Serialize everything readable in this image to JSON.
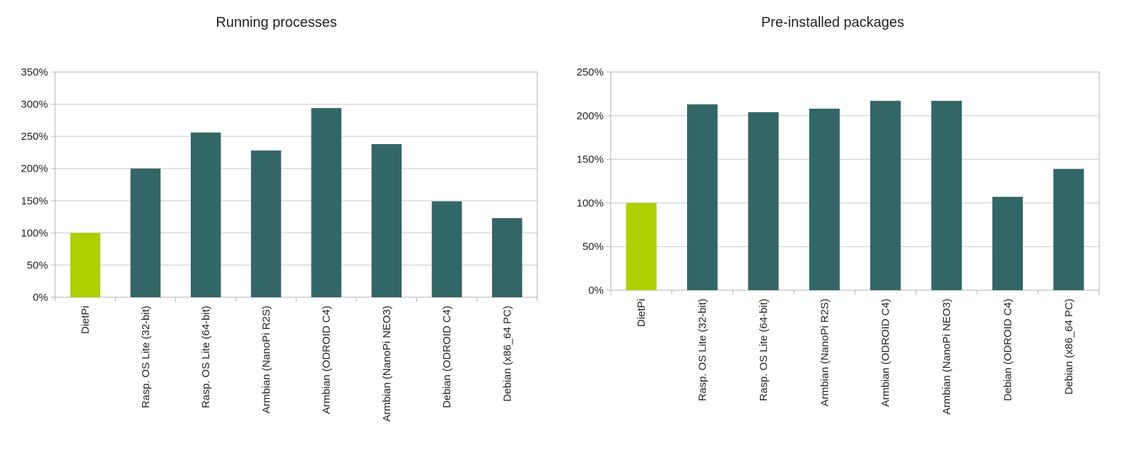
{
  "colors": {
    "highlight": "#b0cf00",
    "bar": "#336666",
    "grid": "#c8c8c8",
    "axis": "#b3b3b3",
    "text": "#222222"
  },
  "chart_data": [
    {
      "type": "bar",
      "title": "Running processes",
      "categories": [
        "DietPi",
        "Rasp. OS Lite (32-bit)",
        "Rasp. OS Lite (64-bit)",
        "Armbian (NanoPi R2S)",
        "Armbian (ODROID C4)",
        "Armbian (NanoPi NEO3)",
        "Debian (ODROID C4)",
        "Debian (x86_64 PC)"
      ],
      "values": [
        100,
        200,
        256,
        228,
        294,
        238,
        149,
        123
      ],
      "highlighted_category": "DietPi",
      "ylim": [
        0,
        350
      ],
      "y_ticks": [
        0,
        50,
        100,
        150,
        200,
        250,
        300,
        350
      ],
      "y_tick_labels": [
        "0%",
        "50%",
        "100%",
        "150%",
        "200%",
        "250%",
        "300%",
        "350%"
      ],
      "xlabel": "",
      "ylabel": "",
      "grid": true,
      "legend": "none"
    },
    {
      "type": "bar",
      "title": "Pre-installed packages",
      "categories": [
        "DietPi",
        "Rasp. OS Lite (32-bit)",
        "Rasp. OS Lite (64-bit)",
        "Armbian (NanoPi R2S)",
        "Armbian (ODROID C4)",
        "Armbian (NanoPi NEO3)",
        "Debian (ODROID C4)",
        "Debian (x86_64 PC)"
      ],
      "values": [
        100,
        213,
        204,
        208,
        217,
        217,
        107,
        139
      ],
      "highlighted_category": "DietPi",
      "ylim": [
        0,
        250
      ],
      "y_ticks": [
        0,
        50,
        100,
        150,
        200,
        250
      ],
      "y_tick_labels": [
        "0%",
        "50%",
        "100%",
        "150%",
        "200%",
        "250%"
      ],
      "xlabel": "",
      "ylabel": "",
      "grid": true,
      "legend": "none"
    }
  ]
}
